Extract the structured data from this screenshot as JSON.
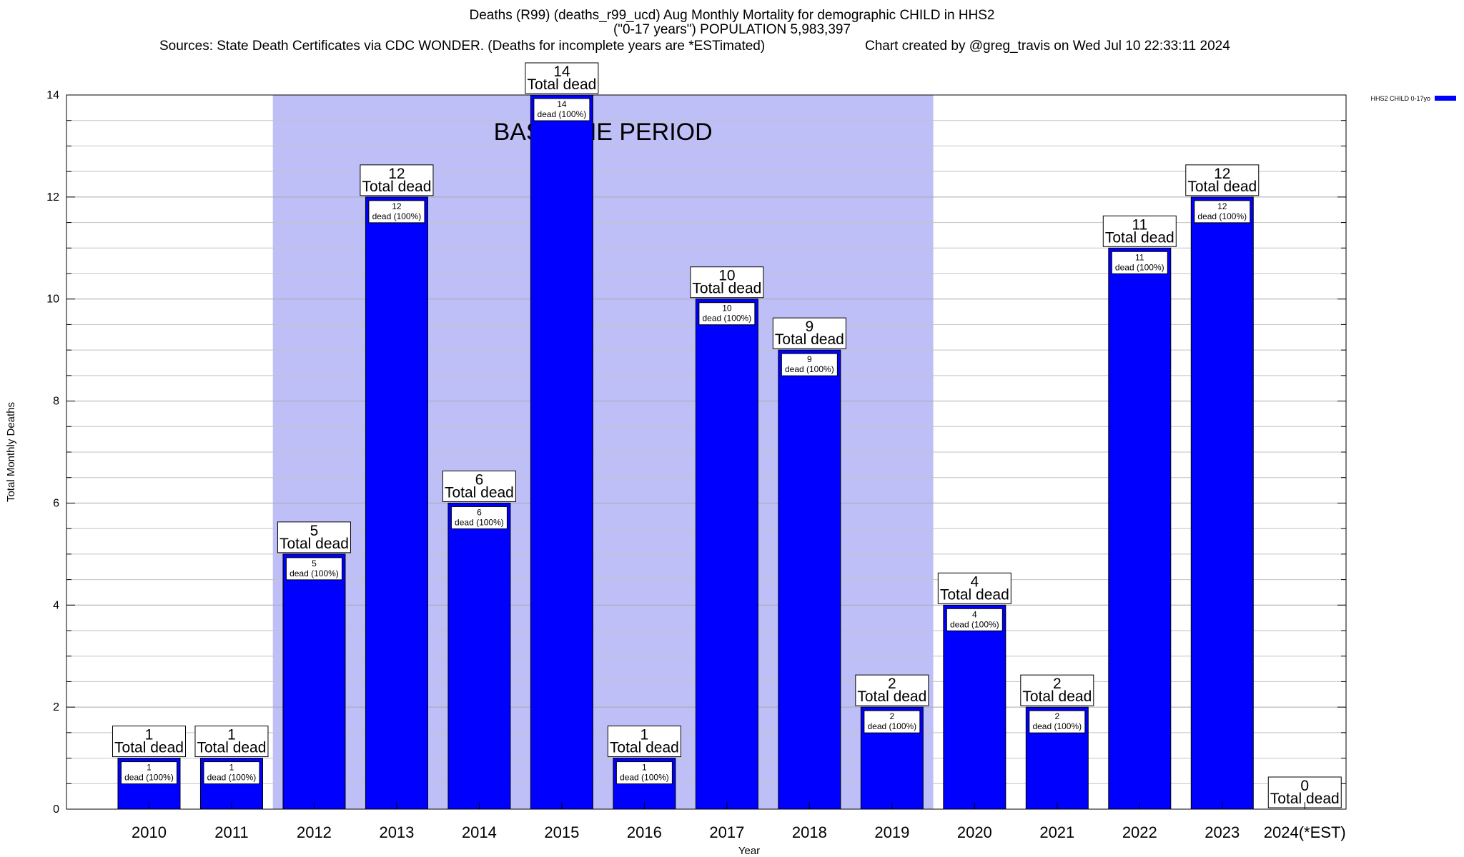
{
  "chart_data": {
    "type": "bar",
    "title_lines": [
      "Deaths (R99) (deaths_r99_ucd) Aug Monthly Mortality for demographic CHILD in HHS2",
      "(\"0-17 years\") POPULATION 5,983,397"
    ],
    "sources": "Sources: State Death Certificates via CDC WONDER. (Deaths for incomplete years are *ESTimated)",
    "credit": "Chart created by @greg_travis on Wed Jul 10 22:33:11 2024",
    "xlabel": "Year",
    "ylabel": "Total Monthly Deaths",
    "ylim": [
      0,
      14
    ],
    "yticks": [
      0,
      2,
      4,
      6,
      8,
      10,
      12,
      14
    ],
    "grid": true,
    "categories": [
      "2010",
      "2011",
      "2012",
      "2013",
      "2014",
      "2015",
      "2016",
      "2017",
      "2018",
      "2019",
      "2020",
      "2021",
      "2022",
      "2023",
      "2024(*EST)"
    ],
    "series": [
      {
        "name": "HHS2 CHILD 0-17yo",
        "color": "#0000ff",
        "values": [
          1,
          1,
          5,
          12,
          6,
          14,
          1,
          10,
          9,
          2,
          4,
          2,
          11,
          12,
          0
        ]
      }
    ],
    "annotations": {
      "total_suffix": "Total dead",
      "inner_labels": [
        "dead (100%)",
        "dead (100%)",
        "dead (100%)",
        "dead (100%)",
        "dead (100%)",
        "dead (100%)",
        "dead (100%)",
        "dead (100%)",
        "dead (100%)",
        "dead (100%)",
        "dead (100%)",
        "dead (100%)",
        "dead (100%)",
        "dead (100%)",
        null
      ]
    },
    "baseline_period": {
      "label": "BASELINE PERIOD",
      "from": "2012",
      "to": "2019",
      "color": "#bfbff8"
    },
    "legend": {
      "placement": "top-right",
      "label": "HHS2 CHILD 0-17yo"
    }
  }
}
